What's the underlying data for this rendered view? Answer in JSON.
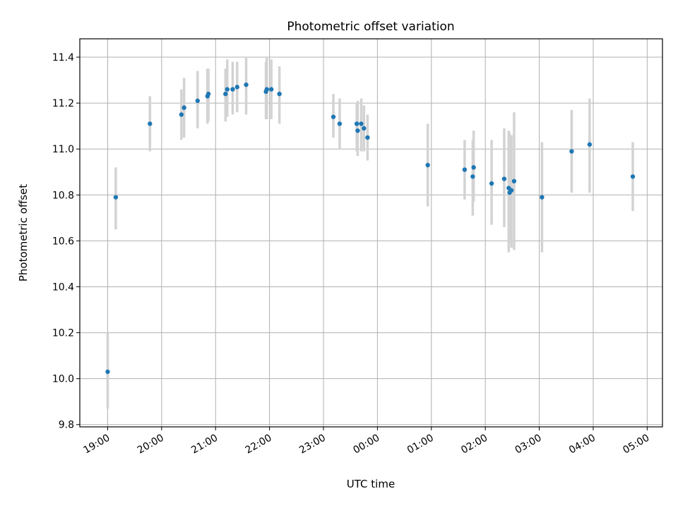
{
  "chart_data": {
    "type": "scatter",
    "title": "Photometric offset variation",
    "xlabel": "UTC time",
    "ylabel": "Photometric offset",
    "grid": true,
    "x_ticks": [
      "19:00",
      "20:00",
      "21:00",
      "22:00",
      "23:00",
      "00:00",
      "01:00",
      "02:00",
      "03:00",
      "04:00",
      "05:00"
    ],
    "y_ticks": [
      "9.8",
      "10.0",
      "10.2",
      "10.4",
      "10.6",
      "10.8",
      "11.0",
      "11.2",
      "11.4"
    ],
    "xlim": [
      "18:29",
      "05:17"
    ],
    "ylim": [
      9.79,
      11.48
    ],
    "colors": {
      "point": "#1f77b4",
      "errorbar": "#d3d3d3",
      "grid": "#b0b0b0"
    },
    "points": [
      {
        "time": "19:00",
        "y": 10.03,
        "lo": 9.87,
        "hi": 10.2
      },
      {
        "time": "19:09",
        "y": 10.79,
        "lo": 10.65,
        "hi": 10.92
      },
      {
        "time": "19:47",
        "y": 11.11,
        "lo": 10.99,
        "hi": 11.23
      },
      {
        "time": "20:22",
        "y": 11.15,
        "lo": 11.04,
        "hi": 11.26
      },
      {
        "time": "20:25",
        "y": 11.18,
        "lo": 11.05,
        "hi": 11.31
      },
      {
        "time": "20:40",
        "y": 11.21,
        "lo": 11.09,
        "hi": 11.34
      },
      {
        "time": "20:51",
        "y": 11.23,
        "lo": 11.11,
        "hi": 11.35
      },
      {
        "time": "20:52",
        "y": 11.24,
        "lo": 11.12,
        "hi": 11.35
      },
      {
        "time": "21:11",
        "y": 11.24,
        "lo": 11.12,
        "hi": 11.35
      },
      {
        "time": "21:13",
        "y": 11.26,
        "lo": 11.14,
        "hi": 11.39
      },
      {
        "time": "21:19",
        "y": 11.26,
        "lo": 11.15,
        "hi": 11.38
      },
      {
        "time": "21:24",
        "y": 11.27,
        "lo": 11.16,
        "hi": 11.38
      },
      {
        "time": "21:34",
        "y": 11.28,
        "lo": 11.15,
        "hi": 11.4
      },
      {
        "time": "21:56",
        "y": 11.25,
        "lo": 11.13,
        "hi": 11.38
      },
      {
        "time": "21:57",
        "y": 11.26,
        "lo": 11.13,
        "hi": 11.4
      },
      {
        "time": "22:02",
        "y": 11.26,
        "lo": 11.13,
        "hi": 11.39
      },
      {
        "time": "22:11",
        "y": 11.24,
        "lo": 11.11,
        "hi": 11.36
      },
      {
        "time": "23:11",
        "y": 11.14,
        "lo": 11.05,
        "hi": 11.24
      },
      {
        "time": "23:18",
        "y": 11.11,
        "lo": 11.0,
        "hi": 11.22
      },
      {
        "time": "23:37",
        "y": 11.11,
        "lo": 10.99,
        "hi": 11.2
      },
      {
        "time": "23:38",
        "y": 11.08,
        "lo": 10.97,
        "hi": 11.21
      },
      {
        "time": "23:42",
        "y": 11.11,
        "lo": 10.99,
        "hi": 11.22
      },
      {
        "time": "23:45",
        "y": 11.09,
        "lo": 10.99,
        "hi": 11.19
      },
      {
        "time": "23:49",
        "y": 11.05,
        "lo": 10.95,
        "hi": 11.15
      },
      {
        "time": "00:56",
        "y": 10.93,
        "lo": 10.75,
        "hi": 11.11
      },
      {
        "time": "01:37",
        "y": 10.91,
        "lo": 10.78,
        "hi": 11.04
      },
      {
        "time": "01:46",
        "y": 10.88,
        "lo": 10.71,
        "hi": 11.04
      },
      {
        "time": "01:47",
        "y": 10.92,
        "lo": 10.77,
        "hi": 11.08
      },
      {
        "time": "02:07",
        "y": 10.85,
        "lo": 10.67,
        "hi": 11.04
      },
      {
        "time": "02:21",
        "y": 10.87,
        "lo": 10.66,
        "hi": 11.09
      },
      {
        "time": "02:26",
        "y": 10.83,
        "lo": 10.55,
        "hi": 11.08
      },
      {
        "time": "02:27",
        "y": 10.81,
        "lo": 10.59,
        "hi": 11.07
      },
      {
        "time": "02:29",
        "y": 10.82,
        "lo": 10.57,
        "hi": 11.06
      },
      {
        "time": "02:32",
        "y": 10.86,
        "lo": 10.56,
        "hi": 11.16
      },
      {
        "time": "03:03",
        "y": 10.79,
        "lo": 10.55,
        "hi": 11.03
      },
      {
        "time": "03:36",
        "y": 10.99,
        "lo": 10.81,
        "hi": 11.17
      },
      {
        "time": "03:56",
        "y": 11.02,
        "lo": 10.81,
        "hi": 11.22
      },
      {
        "time": "04:44",
        "y": 10.88,
        "lo": 10.73,
        "hi": 11.03
      }
    ]
  }
}
